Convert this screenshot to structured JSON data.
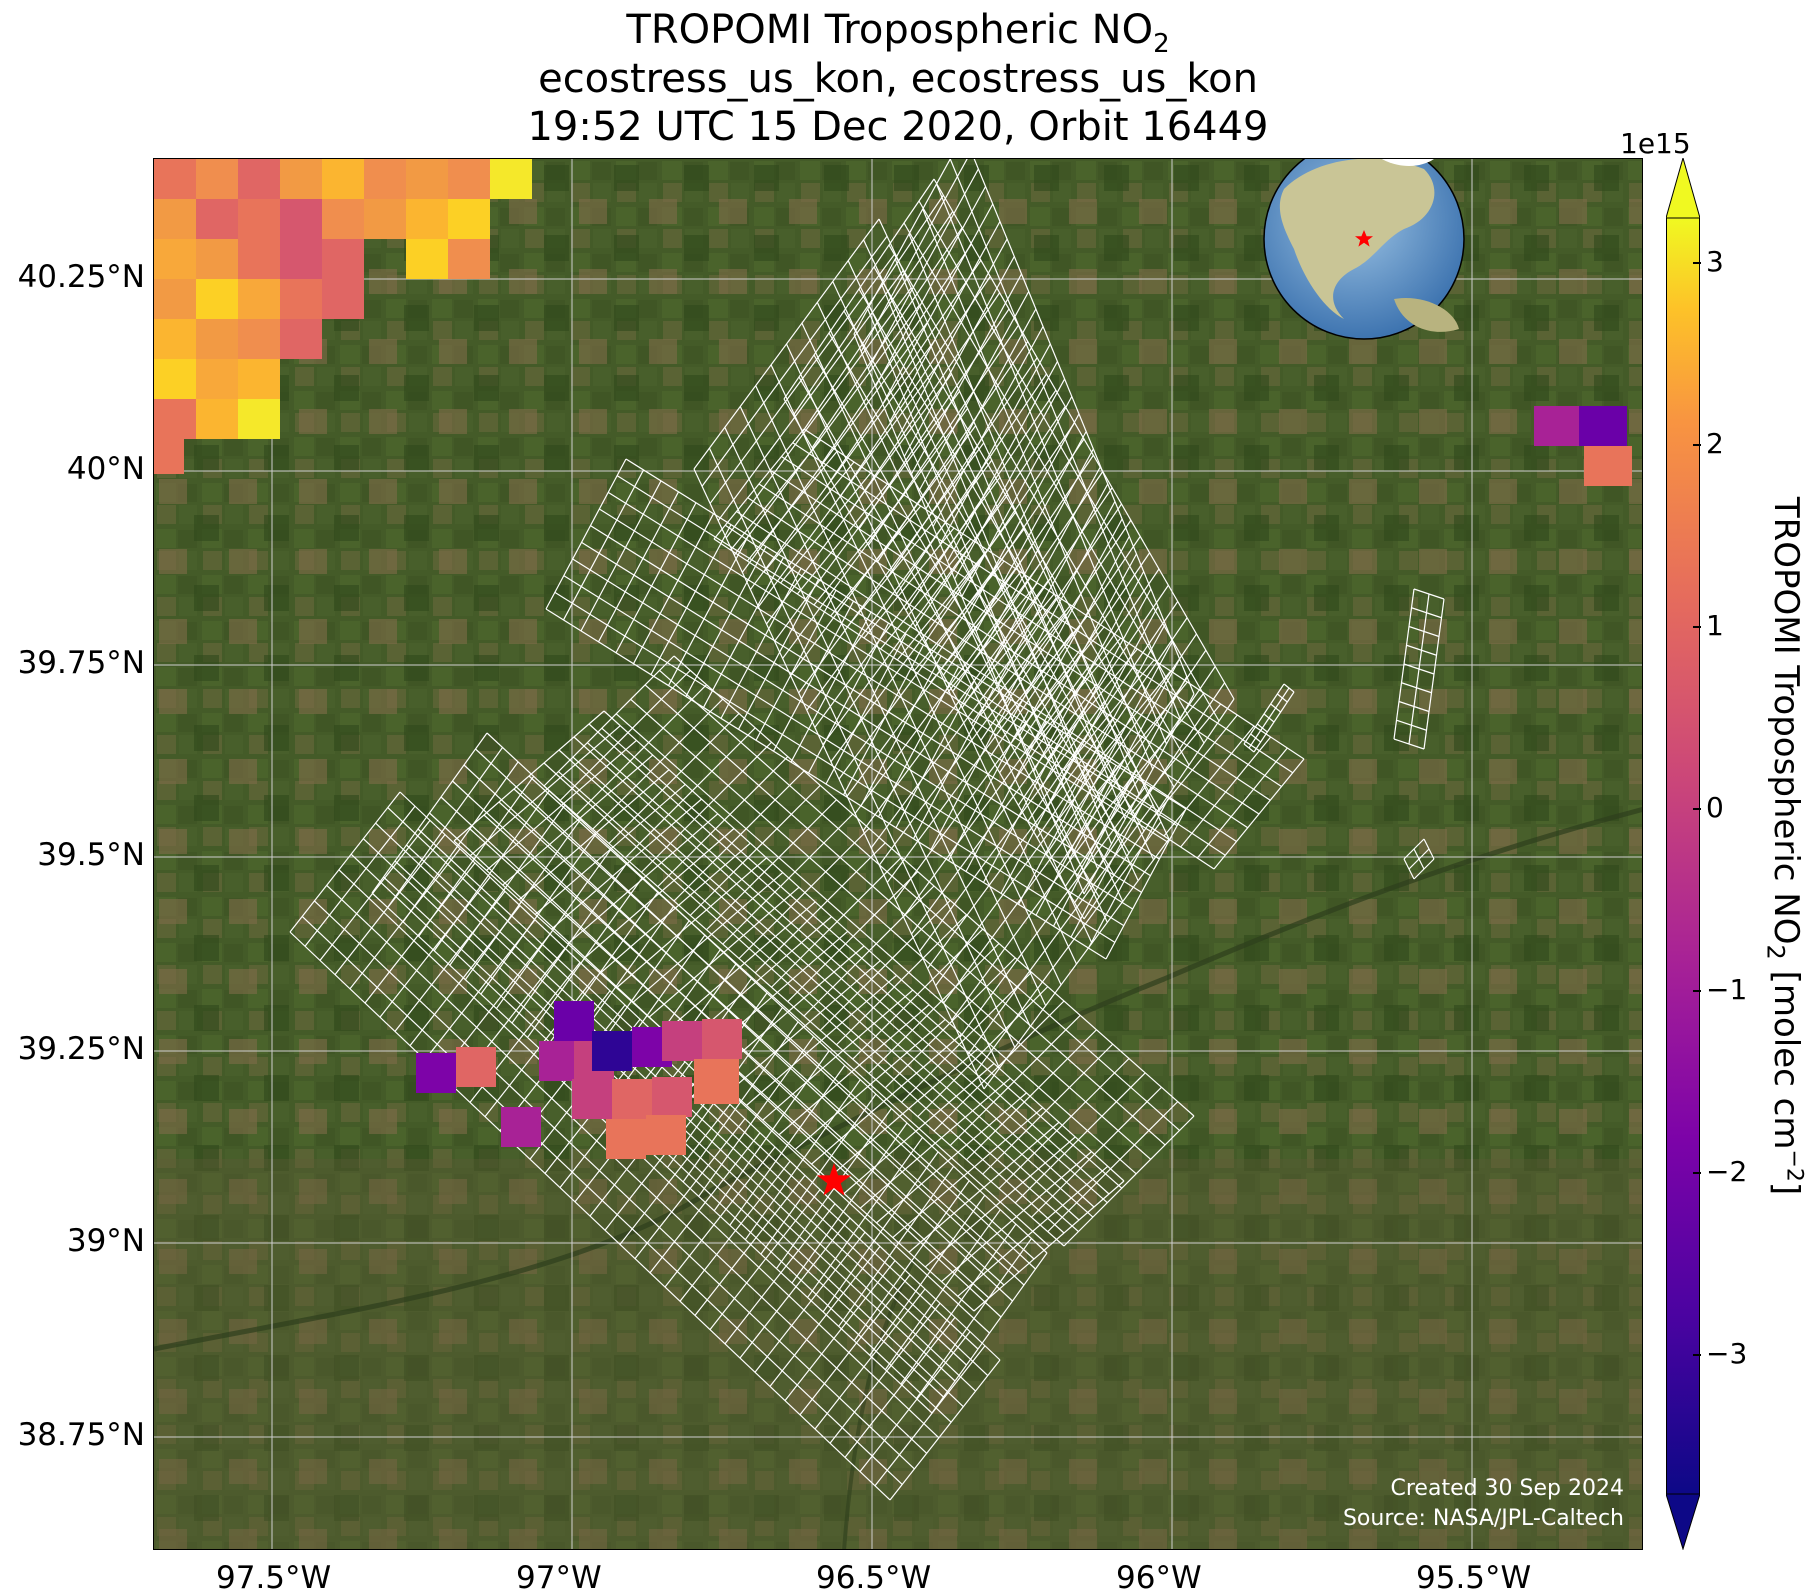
{
  "title": {
    "line1": "TROPOMI Tropospheric NO",
    "line1_sub": "2",
    "line2": "ecostress_us_kon, ecostress_us_kon",
    "line3": "19:52 UTC 15 Dec 2020, Orbit 16449"
  },
  "map": {
    "lon_labels": [
      "97.5°W",
      "97°W",
      "96.5°W",
      "96°W",
      "95.5°W"
    ],
    "lat_labels": [
      "40.25°N",
      "40°N",
      "39.75°N",
      "39.5°N",
      "39.25°N",
      "39°N",
      "38.75°N"
    ],
    "site_marker": "star",
    "site_marker_color": "#ff0000",
    "swath_color": "#ffffff",
    "credit_line1": "Created 30 Sep 2024",
    "credit_line2": "Source: NASA/JPL-Caltech",
    "inset": "globe-locator"
  },
  "colorbar": {
    "label": "TROPOMI Tropospheric NO",
    "label_sub": "2",
    "label_units": " [molec cm",
    "label_units_sup": "−2",
    "label_end": "]",
    "exponent": "1e15",
    "ticks": [
      "3",
      "2",
      "1",
      "0",
      "−1",
      "−2",
      "−3"
    ],
    "colormap": "plasma",
    "extend": "both"
  }
}
